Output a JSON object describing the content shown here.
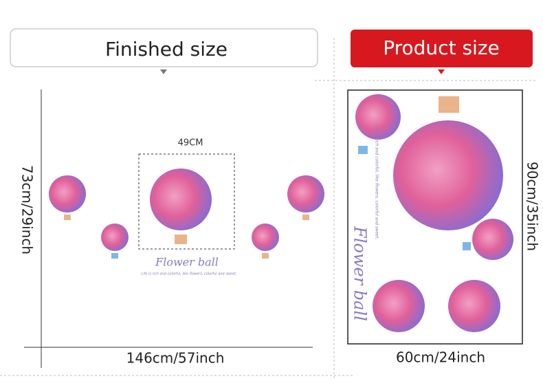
{
  "left": {
    "header": "Finished size",
    "width_label": "49CM",
    "height": "73cm/29inch",
    "total_width": "146cm/57inch",
    "art_title": "Flower ball",
    "art_subtitle": "Life is rich and colorful, like flowers, colorful and sweet."
  },
  "right": {
    "header": "Product size",
    "height": "90cm/35inch",
    "width": "60cm/24inch",
    "art_title": "Flower ball",
    "art_subtitle": "Life is rich and colorful, like flowers, colorful and sweet."
  }
}
